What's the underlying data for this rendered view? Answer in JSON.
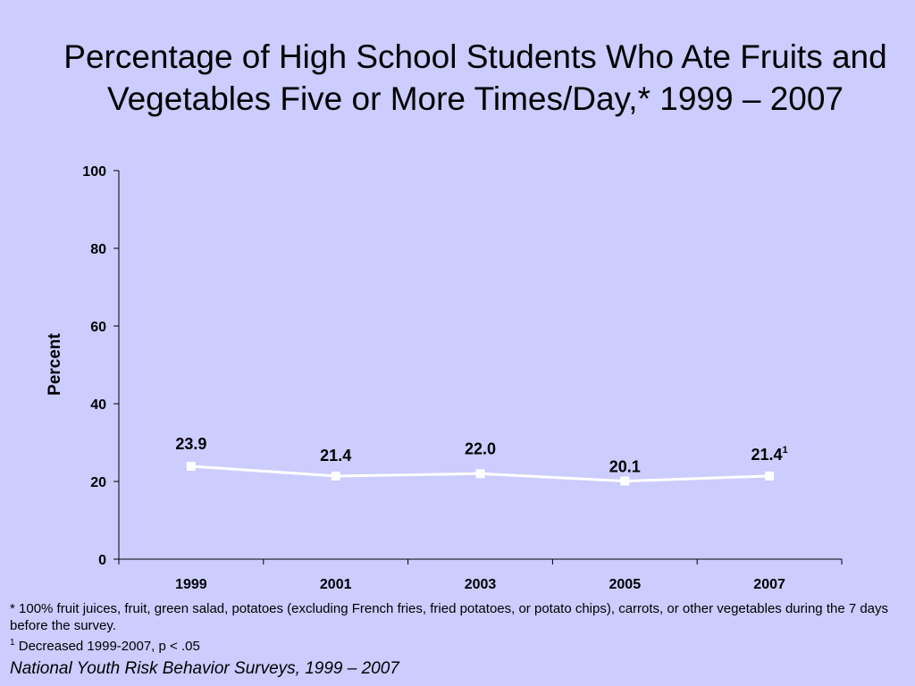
{
  "slide": {
    "title": "Percentage of High School Students Who Ate Fruits and Vegetables Five or More Times/Day,* 1999 – 2007",
    "footnote_line1": "* 100% fruit juices, fruit, green salad, potatoes (excluding French fries, fried potatoes, or potato chips), carrots, or other vegetables during the 7 days before the survey.",
    "footnote_line2_mark": "1",
    "footnote_line2_text": " Decreased 1999-2007, p < .05",
    "source": "National Youth Risk Behavior Surveys, 1999 – 2007"
  },
  "chart_data": {
    "type": "line",
    "categories": [
      "1999",
      "2001",
      "2003",
      "2005",
      "2007"
    ],
    "series": [
      {
        "values": [
          23.9,
          21.4,
          22.0,
          20.1,
          21.4
        ],
        "data_labels": [
          "23.9",
          "21.4",
          "22.0",
          "20.1",
          "21.4"
        ],
        "label_superscripts": [
          "",
          "",
          "",
          "",
          "1"
        ],
        "color": "#ffffff",
        "marker": "square"
      }
    ],
    "ylabel": "Percent",
    "xlabel": "",
    "ylim": [
      0,
      100
    ],
    "yticks": [
      0,
      20,
      40,
      60,
      80,
      100
    ],
    "grid": false,
    "legend": "none"
  }
}
